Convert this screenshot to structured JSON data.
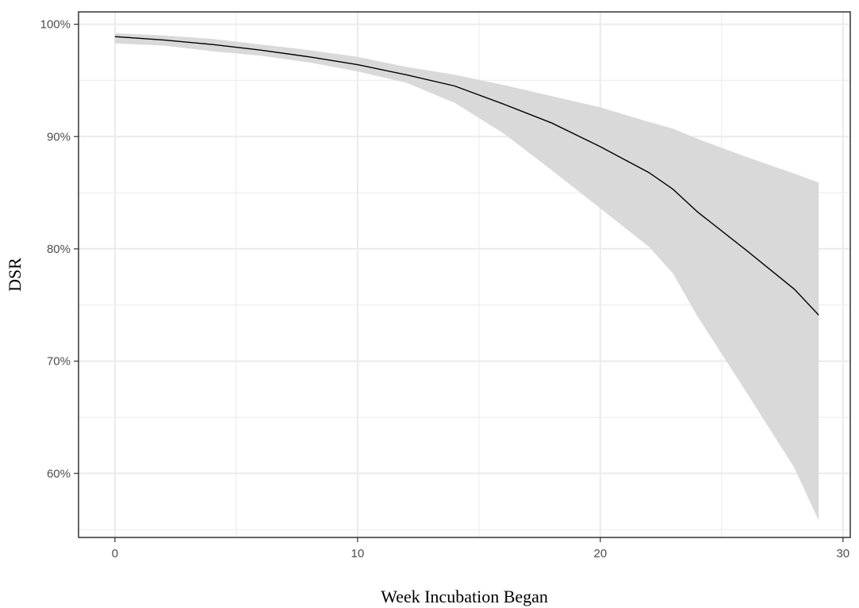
{
  "chart_data": {
    "type": "line",
    "title": "",
    "xlabel": "Week Incubation Began",
    "ylabel": "DSR",
    "xlim": [
      -1.5,
      30.3
    ],
    "ylim": [
      54.3,
      101.1
    ],
    "x_ticks": [
      0,
      10,
      20,
      30
    ],
    "x_tick_labels": [
      "0",
      "10",
      "20",
      "30"
    ],
    "y_ticks": [
      60,
      70,
      80,
      90,
      100
    ],
    "y_tick_labels": [
      "60%",
      "70%",
      "80%",
      "90%",
      "100%"
    ],
    "x_minor_gridlines": [
      5,
      15,
      25
    ],
    "y_minor_gridlines": [
      55,
      65,
      75,
      85,
      95
    ],
    "grid": true,
    "legend": "none",
    "series": [
      {
        "x": [
          0,
          2,
          4,
          6,
          8,
          10,
          12,
          14,
          16,
          18,
          20,
          22,
          23,
          24,
          26,
          28,
          29
        ],
        "y": [
          98.9,
          98.6,
          98.2,
          97.7,
          97.1,
          96.4,
          95.5,
          94.5,
          92.9,
          91.2,
          89.1,
          86.8,
          85.3,
          83.3,
          79.9,
          76.4,
          74.1
        ],
        "lower": [
          98.3,
          98.1,
          97.6,
          97.2,
          96.6,
          95.8,
          94.8,
          93.0,
          90.3,
          87.0,
          83.6,
          80.2,
          77.8,
          74.0,
          67.3,
          60.5,
          55.8
        ],
        "upper": [
          99.2,
          99.0,
          98.7,
          98.2,
          97.7,
          97.1,
          96.2,
          95.5,
          94.6,
          93.6,
          92.6,
          91.3,
          90.7,
          89.8,
          88.2,
          86.7,
          85.9
        ]
      }
    ],
    "colors": {
      "line": "#000000",
      "band": "#d9d9d9",
      "grid": "#ebebeb",
      "border": "#333333"
    }
  }
}
